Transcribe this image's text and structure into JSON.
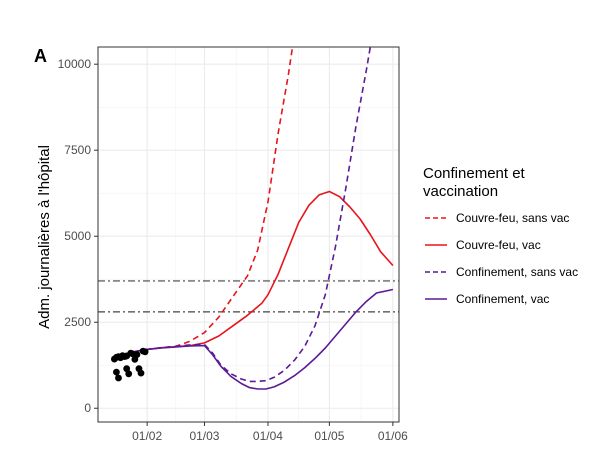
{
  "chart_data": {
    "type": "line",
    "panel_tag": "A",
    "ylabel": "Adm. journalières à l'hôpital",
    "xlabel": "",
    "x_unit": "days since 2021-01-01",
    "xlim": [
      7,
      154
    ],
    "ylim": [
      -400,
      10500
    ],
    "x_ticks": [
      {
        "x": 31,
        "label": "01/02"
      },
      {
        "x": 59,
        "label": "01/03"
      },
      {
        "x": 90,
        "label": "01/04"
      },
      {
        "x": 120,
        "label": "01/05"
      },
      {
        "x": 151,
        "label": "01/06"
      }
    ],
    "y_ticks": [
      {
        "y": 0,
        "label": "0"
      },
      {
        "y": 2500,
        "label": "2500"
      },
      {
        "y": 5000,
        "label": "5000"
      },
      {
        "y": 7500,
        "label": "7500"
      },
      {
        "y": 10000,
        "label": "10000"
      }
    ],
    "grid": true,
    "legend": {
      "position": "right",
      "title_lines": [
        "Confinement et",
        "vaccination"
      ]
    },
    "reference_lines": [
      3700,
      2800
    ],
    "observed": {
      "name": "",
      "color": "#000000",
      "points": [
        [
          15,
          1430
        ],
        [
          16,
          1050
        ],
        [
          16,
          1480
        ],
        [
          17,
          880
        ],
        [
          17,
          1500
        ],
        [
          18,
          1470
        ],
        [
          19,
          1530
        ],
        [
          20,
          1500
        ],
        [
          21,
          1520
        ],
        [
          21,
          1150
        ],
        [
          22,
          1000
        ],
        [
          23,
          1600
        ],
        [
          24,
          1580
        ],
        [
          25,
          1420
        ],
        [
          26,
          1560
        ],
        [
          27,
          1150
        ],
        [
          28,
          1020
        ],
        [
          29,
          1660
        ],
        [
          30,
          1640
        ]
      ]
    },
    "series": [
      {
        "name": "Couvre-feu, sans vac",
        "color": "#e8141c",
        "dash": "dashed",
        "points": [
          [
            25,
            1650
          ],
          [
            31,
            1710
          ],
          [
            38,
            1760
          ],
          [
            45,
            1800
          ],
          [
            52,
            1950
          ],
          [
            59,
            2200
          ],
          [
            66,
            2650
          ],
          [
            73,
            3250
          ],
          [
            80,
            3850
          ],
          [
            85,
            4600
          ],
          [
            90,
            6000
          ],
          [
            95,
            8000
          ],
          [
            100,
            9700
          ],
          [
            102,
            10500
          ]
        ]
      },
      {
        "name": "Couvre-feu, vac",
        "color": "#e8141c",
        "dash": "solid",
        "points": [
          [
            25,
            1650
          ],
          [
            31,
            1710
          ],
          [
            38,
            1760
          ],
          [
            45,
            1790
          ],
          [
            52,
            1820
          ],
          [
            59,
            1900
          ],
          [
            66,
            2100
          ],
          [
            73,
            2400
          ],
          [
            80,
            2700
          ],
          [
            87,
            3050
          ],
          [
            90,
            3300
          ],
          [
            95,
            3900
          ],
          [
            100,
            4650
          ],
          [
            105,
            5400
          ],
          [
            110,
            5900
          ],
          [
            115,
            6200
          ],
          [
            120,
            6300
          ],
          [
            125,
            6150
          ],
          [
            130,
            5850
          ],
          [
            135,
            5500
          ],
          [
            140,
            5050
          ],
          [
            145,
            4550
          ],
          [
            151,
            4150
          ]
        ]
      },
      {
        "name": "Confinement, sans vac",
        "color": "#5b1a96",
        "dash": "dashed",
        "points": [
          [
            25,
            1650
          ],
          [
            31,
            1710
          ],
          [
            38,
            1760
          ],
          [
            45,
            1800
          ],
          [
            52,
            1840
          ],
          [
            59,
            1850
          ],
          [
            63,
            1600
          ],
          [
            67,
            1250
          ],
          [
            72,
            1000
          ],
          [
            77,
            850
          ],
          [
            81,
            780
          ],
          [
            85,
            780
          ],
          [
            89,
            800
          ],
          [
            93,
            900
          ],
          [
            98,
            1100
          ],
          [
            103,
            1400
          ],
          [
            108,
            1800
          ],
          [
            113,
            2400
          ],
          [
            118,
            3300
          ],
          [
            123,
            4700
          ],
          [
            128,
            6400
          ],
          [
            133,
            8200
          ],
          [
            138,
            9800
          ],
          [
            140,
            10500
          ]
        ]
      },
      {
        "name": "Confinement, vac",
        "color": "#5b1a96",
        "dash": "solid",
        "points": [
          [
            25,
            1650
          ],
          [
            31,
            1710
          ],
          [
            38,
            1750
          ],
          [
            45,
            1780
          ],
          [
            52,
            1810
          ],
          [
            59,
            1820
          ],
          [
            63,
            1550
          ],
          [
            67,
            1220
          ],
          [
            72,
            920
          ],
          [
            77,
            720
          ],
          [
            81,
            600
          ],
          [
            85,
            560
          ],
          [
            89,
            560
          ],
          [
            93,
            620
          ],
          [
            98,
            760
          ],
          [
            103,
            950
          ],
          [
            108,
            1180
          ],
          [
            113,
            1450
          ],
          [
            118,
            1750
          ],
          [
            123,
            2100
          ],
          [
            128,
            2450
          ],
          [
            133,
            2800
          ],
          [
            138,
            3100
          ],
          [
            143,
            3350
          ],
          [
            151,
            3450
          ]
        ]
      }
    ]
  }
}
